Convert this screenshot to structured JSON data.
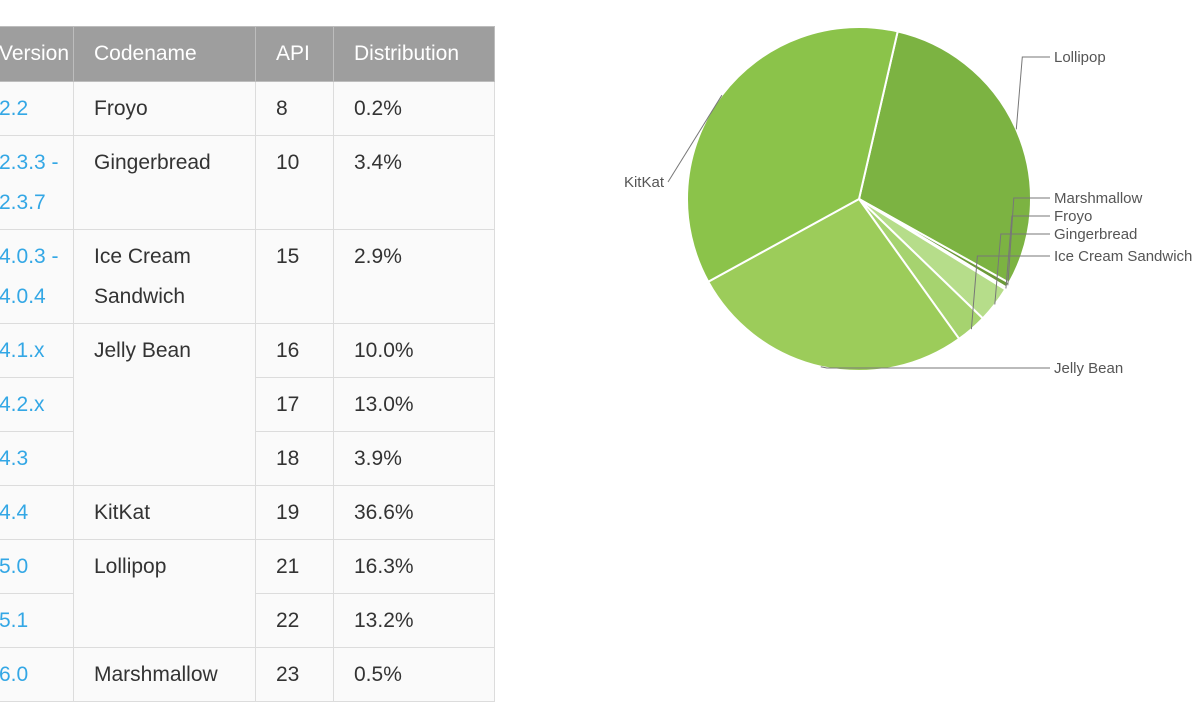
{
  "table": {
    "headers": [
      "Version",
      "Codename",
      "API",
      "Distribution"
    ],
    "rows": [
      {
        "version": "2.2",
        "codename": "Froyo",
        "api": "8",
        "distribution": "0.2%"
      },
      {
        "version": "2.3.3 - 2.3.7",
        "codename": "Gingerbread",
        "api": "10",
        "distribution": "3.4%"
      },
      {
        "version": "4.0.3 - 4.0.4",
        "codename": "Ice Cream Sandwich",
        "api": "15",
        "distribution": "2.9%"
      },
      {
        "version": "4.1.x",
        "codename": "Jelly Bean",
        "api": "16",
        "distribution": "10.0%"
      },
      {
        "version": "4.2.x",
        "codename": "",
        "api": "17",
        "distribution": "13.0%"
      },
      {
        "version": "4.3",
        "codename": "",
        "api": "18",
        "distribution": "3.9%"
      },
      {
        "version": "4.4",
        "codename": "KitKat",
        "api": "19",
        "distribution": "36.6%"
      },
      {
        "version": "5.0",
        "codename": "Lollipop",
        "api": "21",
        "distribution": "16.3%"
      },
      {
        "version": "5.1",
        "codename": "",
        "api": "22",
        "distribution": "13.2%"
      },
      {
        "version": "6.0",
        "codename": "Marshmallow",
        "api": "23",
        "distribution": "0.5%"
      }
    ]
  },
  "chart_data": {
    "type": "pie",
    "slices": [
      {
        "label": "Lollipop",
        "value": 29.5,
        "color": "#7cb342"
      },
      {
        "label": "Marshmallow",
        "value": 0.5,
        "color": "#6c9a38"
      },
      {
        "label": "Froyo",
        "value": 0.2,
        "color": "#c5e1a5"
      },
      {
        "label": "Gingerbread",
        "value": 3.4,
        "color": "#b6dd8a"
      },
      {
        "label": "Ice Cream Sandwich",
        "value": 2.9,
        "color": "#a6d36f"
      },
      {
        "label": "Jelly Bean",
        "value": 26.9,
        "color": "#9ccc5a"
      },
      {
        "label": "KitKat",
        "value": 36.6,
        "color": "#8bc34a"
      }
    ]
  }
}
